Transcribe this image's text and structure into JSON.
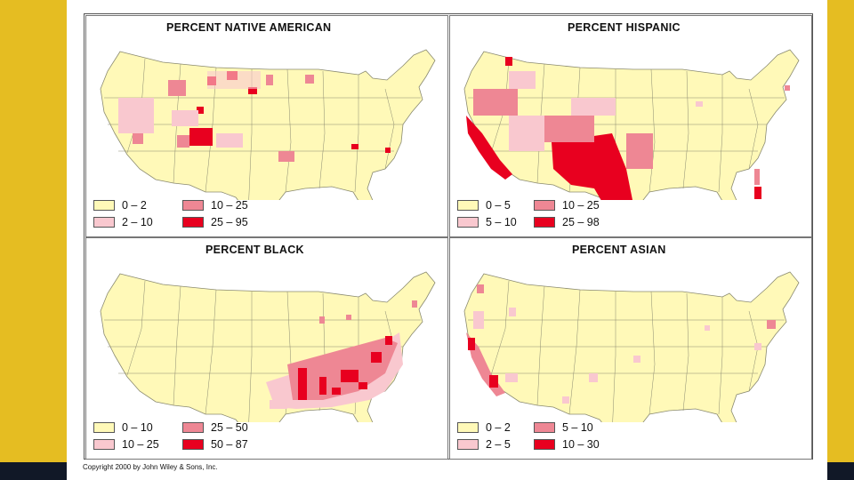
{
  "colors": {
    "side_bar": "#e5bd22",
    "footer_bar": "#111827",
    "base": "#fff9b8",
    "light": "#f9c8cf",
    "medium": "#ee8794",
    "dark": "#e8001f",
    "lines": "#8a8a70"
  },
  "panels": [
    {
      "title": "PERCENT NATIVE AMERICAN",
      "legend": [
        {
          "label": "0 – 2",
          "level": "base"
        },
        {
          "label": "2 – 10",
          "level": "light"
        },
        {
          "label": "10 – 25",
          "level": "medium"
        },
        {
          "label": "25 – 95",
          "level": "dark"
        }
      ]
    },
    {
      "title": "PERCENT HISPANIC",
      "legend": [
        {
          "label": "0 – 5",
          "level": "base"
        },
        {
          "label": "5 – 10",
          "level": "light"
        },
        {
          "label": "10 – 25",
          "level": "medium"
        },
        {
          "label": "25 – 98",
          "level": "dark"
        }
      ]
    },
    {
      "title": "PERCENT BLACK",
      "legend": [
        {
          "label": "0 – 10",
          "level": "base"
        },
        {
          "label": "10 – 25",
          "level": "light"
        },
        {
          "label": "25 – 50",
          "level": "medium"
        },
        {
          "label": "50 – 87",
          "level": "dark"
        }
      ]
    },
    {
      "title": "PERCENT ASIAN",
      "legend": [
        {
          "label": "0 – 2",
          "level": "base"
        },
        {
          "label": "2 – 5",
          "level": "light"
        },
        {
          "label": "5 – 10",
          "level": "medium"
        },
        {
          "label": "10 – 30",
          "level": "dark"
        }
      ]
    }
  ],
  "copyright": "Copyright 2000 by John Wiley & Sons, Inc."
}
